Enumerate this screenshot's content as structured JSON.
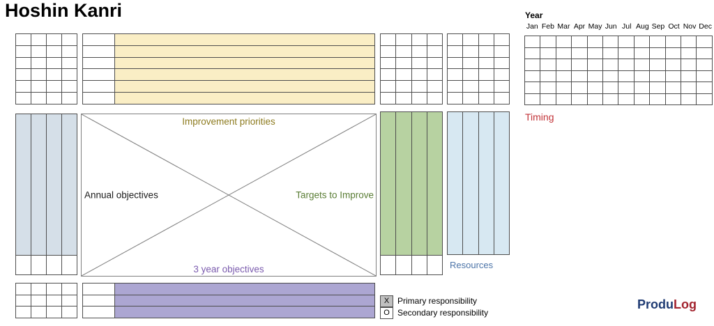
{
  "title": "Hoshin Kanri",
  "year_section": {
    "label": "Year",
    "months": [
      "Jan",
      "Feb",
      "Mar",
      "Apr",
      "May",
      "Jun",
      "Jul",
      "Aug",
      "Sep",
      "Oct",
      "Nov",
      "Dec"
    ],
    "timing_label": "Timing"
  },
  "matrix": {
    "top_label": "Improvement priorities",
    "left_label": "Annual objectives",
    "right_label": "Targets to Improve",
    "bottom_label": "3 year objectives"
  },
  "resources_label": "Resources",
  "legend": {
    "items": [
      {
        "symbol": "X",
        "label": "Primary responsibility"
      },
      {
        "symbol": "O",
        "label": "Secondary responsibility"
      }
    ]
  },
  "logo": {
    "part1": "Produ",
    "part2": "Log"
  },
  "colors": {
    "grid_line": "#4d4d4d",
    "improvement_fill": "#faeec5",
    "annual_fill": "#d5dfe8",
    "targets_fill": "#b7d2a1",
    "resources_fill": "#d7e8f2",
    "objectives_fill": "#aca6d2",
    "legend_primary_fill": "#c0c0c0",
    "improvement_label": "#8d7b1f",
    "targets_label": "#5a7d35",
    "objectives_label": "#7b5bae",
    "timing_label": "#c23338",
    "resources_label": "#4c74a8",
    "logo_blue": "#1f3b73",
    "logo_red": "#a3242f"
  },
  "grids": {
    "top_left": {
      "type": "uniform",
      "cols": 4,
      "rows": 6
    },
    "top_center": {
      "type": "banded",
      "rows": 6,
      "band_color": "improvement_fill"
    },
    "top_right_a": {
      "type": "uniform",
      "cols": 4,
      "rows": 6
    },
    "top_right_b": {
      "type": "uniform",
      "cols": 4,
      "rows": 6
    },
    "year": {
      "type": "uniform",
      "cols": 12,
      "rows": 6
    },
    "annual": {
      "type": "columns",
      "cols": 4,
      "color": "annual_fill",
      "bottom_row": true
    },
    "targets": {
      "type": "columns",
      "cols": 4,
      "color": "targets_fill",
      "bottom_row": true
    },
    "resources": {
      "type": "columns",
      "cols": 4,
      "color": "resources_fill",
      "bottom_row": false
    },
    "bottom_left": {
      "type": "uniform",
      "cols": 4,
      "rows": 3
    },
    "bottom_center": {
      "type": "banded",
      "rows": 3,
      "band_color": "objectives_fill"
    }
  }
}
